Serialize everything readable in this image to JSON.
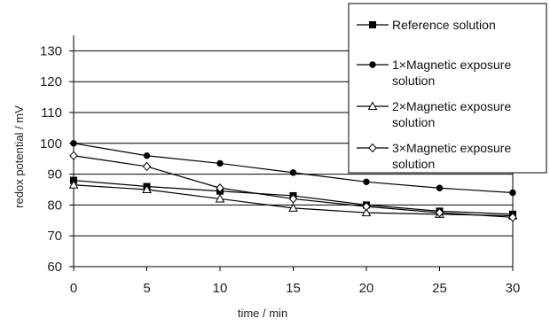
{
  "chart_data": {
    "type": "line",
    "title": "",
    "xlabel": "time / min",
    "ylabel": "redox potential / mV",
    "x": [
      0,
      5,
      10,
      15,
      20,
      25,
      30
    ],
    "xlim": [
      0,
      30
    ],
    "ylim": [
      60,
      135
    ],
    "xticks": [
      "0",
      "5",
      "10",
      "15",
      "20",
      "25",
      "30"
    ],
    "yticks": [
      "60",
      "70",
      "80",
      "90",
      "100",
      "110",
      "120",
      "130"
    ],
    "grid": "horizontal",
    "legend_position": "top-right",
    "series": [
      {
        "name": "Reference solution",
        "name_lines": [
          "Reference solution"
        ],
        "marker": "square",
        "values": [
          88,
          86,
          84.5,
          83,
          80,
          78,
          77
        ]
      },
      {
        "name": "1×Magnetic exposure solution",
        "name_lines": [
          "1×Magnetic exposure",
          "solution"
        ],
        "marker": "circle",
        "values": [
          100,
          96,
          93.5,
          90.5,
          87.5,
          85.5,
          84
        ]
      },
      {
        "name": "2×Magnetic exposure solution",
        "name_lines": [
          "2×Magnetic exposure",
          "solution"
        ],
        "marker": "triangle",
        "values": [
          86.5,
          85,
          82,
          79,
          77.5,
          77,
          76.5
        ]
      },
      {
        "name": "3×Magnetic exposure solution",
        "name_lines": [
          "3×Magnetic exposure",
          "solution"
        ],
        "marker": "diamond",
        "values": [
          96,
          92.5,
          85.5,
          82,
          79.5,
          77.5,
          76
        ]
      }
    ]
  }
}
